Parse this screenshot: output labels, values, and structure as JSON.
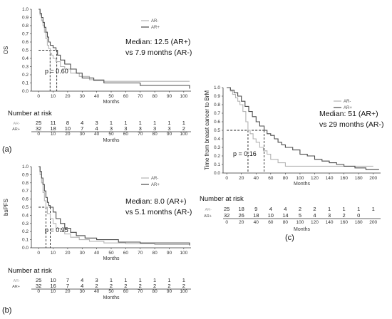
{
  "chart_data": [
    {
      "type": "line",
      "panel_label": "(a)",
      "ylabel": "OS",
      "xlabel": "Months",
      "xlim": [
        -5,
        105
      ],
      "ylim": [
        0,
        1
      ],
      "x_ticks": [
        0,
        10,
        20,
        30,
        40,
        50,
        60,
        70,
        80,
        90,
        100
      ],
      "y_ticks": [
        "0.0",
        "0.1",
        "0.2",
        "0.3",
        "0.4",
        "0.5",
        "0.6",
        "0.7",
        "0.8",
        "0.9",
        "1.0"
      ],
      "legend": [
        "AR-",
        "AR+"
      ],
      "legend_position": "top-right",
      "annotation_lines": [
        "Median: 12.5 (AR+)",
        "vs 7.9 months (AR-)"
      ],
      "p_value": "p = 0.60",
      "medians": [
        7.9,
        12.5
      ],
      "series": [
        {
          "name": "AR-",
          "color": "#b4b4b4",
          "x": [
            0,
            1,
            2,
            3,
            4,
            5,
            6,
            7,
            8,
            9,
            10,
            12,
            15,
            18,
            22,
            28,
            35,
            45,
            60,
            70,
            85,
            104
          ],
          "y": [
            1.0,
            0.93,
            0.86,
            0.8,
            0.72,
            0.64,
            0.56,
            0.52,
            0.46,
            0.44,
            0.4,
            0.36,
            0.3,
            0.27,
            0.22,
            0.18,
            0.14,
            0.12,
            0.12,
            0.12,
            0.12,
            0.12
          ]
        },
        {
          "name": "AR+",
          "color": "#4a4a4a",
          "x": [
            0,
            1,
            2,
            3,
            4,
            5,
            6,
            7,
            8,
            10,
            12,
            13,
            15,
            18,
            22,
            26,
            30,
            38,
            45,
            55,
            70,
            90,
            104
          ],
          "y": [
            1.0,
            0.95,
            0.9,
            0.84,
            0.78,
            0.72,
            0.66,
            0.6,
            0.56,
            0.53,
            0.5,
            0.44,
            0.38,
            0.33,
            0.27,
            0.22,
            0.16,
            0.13,
            0.1,
            0.1,
            0.07,
            0.07,
            0.03
          ]
        }
      ],
      "risk_table": {
        "title": "Number at risk",
        "xlabel": "Months",
        "times": [
          0,
          10,
          20,
          30,
          40,
          50,
          60,
          70,
          80,
          90,
          100
        ],
        "rows": [
          {
            "label": "AR-",
            "values": [
              "25",
              "11",
              "8",
              "4",
              "3",
              "1",
              "1",
              "1",
              "1",
              "1",
              "1"
            ]
          },
          {
            "label": "AR+",
            "values": [
              "32",
              "18",
              "10",
              "7",
              "4",
              "3",
              "3",
              "3",
              "3",
              "3",
              "2"
            ]
          }
        ]
      }
    },
    {
      "type": "line",
      "panel_label": "(b)",
      "ylabel": "bsPFS",
      "xlabel": "Months",
      "xlim": [
        -5,
        105
      ],
      "ylim": [
        0,
        1
      ],
      "x_ticks": [
        0,
        10,
        20,
        30,
        40,
        50,
        60,
        70,
        80,
        90,
        100
      ],
      "y_ticks": [
        "0.0",
        "0.1",
        "0.2",
        "0.3",
        "0.4",
        "0.5",
        "0.6",
        "0.7",
        "0.8",
        "0.9",
        "1.0"
      ],
      "legend": [
        "AR-",
        "AR+"
      ],
      "legend_position": "top-right",
      "annotation_lines": [
        "Median: 8.0 (AR+)",
        "vs 5.1 months (AR-)"
      ],
      "p_value": "p = 0.95",
      "medians": [
        5.1,
        8.0
      ],
      "series": [
        {
          "name": "AR-",
          "color": "#b4b4b4",
          "x": [
            0,
            1,
            2,
            3,
            4,
            5,
            6,
            8,
            10,
            12,
            15,
            18,
            22,
            28,
            35,
            45,
            60,
            80,
            104
          ],
          "y": [
            1.0,
            0.9,
            0.8,
            0.68,
            0.58,
            0.5,
            0.42,
            0.36,
            0.3,
            0.24,
            0.2,
            0.17,
            0.13,
            0.1,
            0.08,
            0.06,
            0.05,
            0.04,
            0.04
          ]
        },
        {
          "name": "AR+",
          "color": "#4a4a4a",
          "x": [
            0,
            1,
            2,
            3,
            4,
            5,
            6,
            7,
            8,
            10,
            12,
            15,
            18,
            22,
            26,
            32,
            40,
            55,
            70,
            90,
            104
          ],
          "y": [
            1.0,
            0.94,
            0.86,
            0.78,
            0.7,
            0.62,
            0.56,
            0.52,
            0.5,
            0.44,
            0.36,
            0.3,
            0.24,
            0.19,
            0.15,
            0.12,
            0.1,
            0.07,
            0.06,
            0.06,
            0.03
          ]
        }
      ],
      "risk_table": {
        "title": "Number at risk",
        "xlabel": "Months",
        "times": [
          0,
          10,
          20,
          30,
          40,
          50,
          60,
          70,
          80,
          90,
          100
        ],
        "rows": [
          {
            "label": "AR-",
            "values": [
              "25",
              "10",
              "7",
              "4",
              "3",
              "1",
              "1",
              "1",
              "1",
              "1",
              "1"
            ]
          },
          {
            "label": "AR+",
            "values": [
              "32",
              "16",
              "7",
              "4",
              "2",
              "2",
              "2",
              "2",
              "2",
              "2",
              "2"
            ]
          }
        ]
      }
    },
    {
      "type": "line",
      "panel_label": "(c)",
      "ylabel": "Time from breast cancer to BrM",
      "xlabel": "Months",
      "xlim": [
        -5,
        210
      ],
      "ylim": [
        0,
        1
      ],
      "x_ticks": [
        0,
        20,
        40,
        60,
        80,
        100,
        120,
        140,
        160,
        180,
        200
      ],
      "y_ticks": [
        "0.0",
        "0.1",
        "0.2",
        "0.3",
        "0.4",
        "0.5",
        "0.6",
        "0.7",
        "0.8",
        "0.9",
        "1.0"
      ],
      "legend": [
        "AR-",
        "AR+"
      ],
      "legend_position": "top-right",
      "annotation_lines": [
        "Median: 51 (AR+)",
        "vs 29 months (AR-)"
      ],
      "p_value": "p = 0.16",
      "medians": [
        29,
        51
      ],
      "series": [
        {
          "name": "AR-",
          "color": "#b4b4b4",
          "x": [
            0,
            5,
            8,
            12,
            15,
            18,
            22,
            26,
            29,
            32,
            36,
            40,
            45,
            50,
            55,
            60,
            70,
            80,
            100,
            120,
            150,
            200
          ],
          "y": [
            1.0,
            0.96,
            0.92,
            0.88,
            0.84,
            0.8,
            0.72,
            0.6,
            0.5,
            0.46,
            0.4,
            0.36,
            0.3,
            0.26,
            0.22,
            0.16,
            0.12,
            0.08,
            0.08,
            0.08,
            0.08,
            0.08
          ]
        },
        {
          "name": "AR+",
          "color": "#4a4a4a",
          "x": [
            0,
            5,
            10,
            15,
            20,
            25,
            30,
            35,
            40,
            45,
            51,
            55,
            60,
            65,
            70,
            75,
            80,
            90,
            100,
            110,
            120,
            130,
            140,
            150,
            160,
            175,
            190,
            200,
            208
          ],
          "y": [
            1.0,
            0.97,
            0.94,
            0.9,
            0.84,
            0.78,
            0.72,
            0.66,
            0.6,
            0.55,
            0.5,
            0.46,
            0.44,
            0.4,
            0.36,
            0.33,
            0.3,
            0.27,
            0.22,
            0.2,
            0.16,
            0.14,
            0.12,
            0.1,
            0.08,
            0.06,
            0.04,
            0.04,
            0.04
          ]
        }
      ],
      "risk_table": {
        "title": "Number at risk",
        "xlabel": "Months",
        "times": [
          0,
          20,
          40,
          60,
          80,
          100,
          120,
          140,
          160,
          180,
          200
        ],
        "rows": [
          {
            "label": "AR-",
            "values": [
              "25",
              "18",
              "9",
              "4",
              "4",
              "2",
              "2",
              "1",
              "1",
              "1",
              "1"
            ]
          },
          {
            "label": "AR+",
            "values": [
              "32",
              "26",
              "18",
              "10",
              "14",
              "5",
              "4",
              "3",
              "2",
              "0",
              ""
            ]
          }
        ]
      }
    }
  ]
}
